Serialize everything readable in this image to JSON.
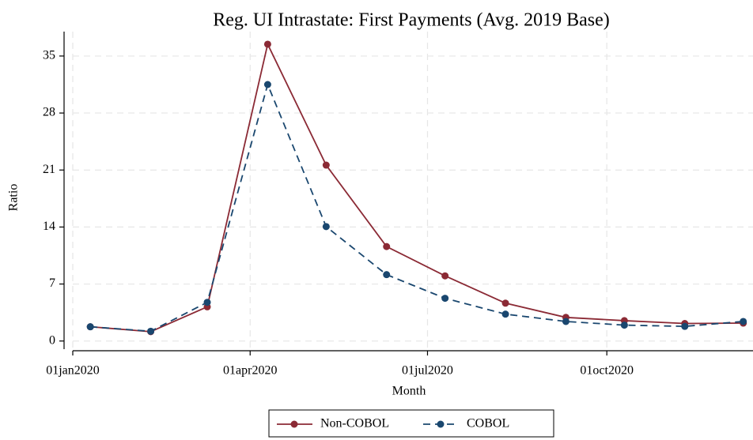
{
  "chart_data": {
    "type": "line",
    "title": "Reg. UI Intrastate: First Payments (Avg. 2019 Base)",
    "x_label": "Month",
    "y_label": "Ratio",
    "x": [
      "2020-01-10",
      "2020-02-10",
      "2020-03-10",
      "2020-04-10",
      "2020-05-10",
      "2020-06-10",
      "2020-07-10",
      "2020-08-10",
      "2020-09-10",
      "2020-10-10",
      "2020-11-10",
      "2020-12-10"
    ],
    "series": [
      {
        "name": "Non-COBOL",
        "color": "#8b2a35",
        "dash": false,
        "values": [
          1.75,
          1.15,
          4.2,
          36.45,
          21.6,
          11.6,
          8.0,
          4.65,
          2.9,
          2.5,
          2.15,
          2.2
        ]
      },
      {
        "name": "COBOL",
        "color": "#1a476f",
        "dash": true,
        "values": [
          1.75,
          1.2,
          4.75,
          31.5,
          14.05,
          8.15,
          5.25,
          3.3,
          2.4,
          1.95,
          1.8,
          2.4
        ]
      }
    ],
    "xlim": [
      "2020-01-01",
      "2020-12-15"
    ],
    "xticks": [
      {
        "value": "2020-01-01",
        "label": "01jan2020"
      },
      {
        "value": "2020-04-01",
        "label": "01apr2020"
      },
      {
        "value": "2020-07-01",
        "label": "01jul2020"
      },
      {
        "value": "2020-10-01",
        "label": "01oct2020"
      }
    ],
    "ylim": [
      -1,
      38
    ],
    "yticks": [
      0,
      7,
      14,
      21,
      28,
      35
    ],
    "grid": true
  }
}
